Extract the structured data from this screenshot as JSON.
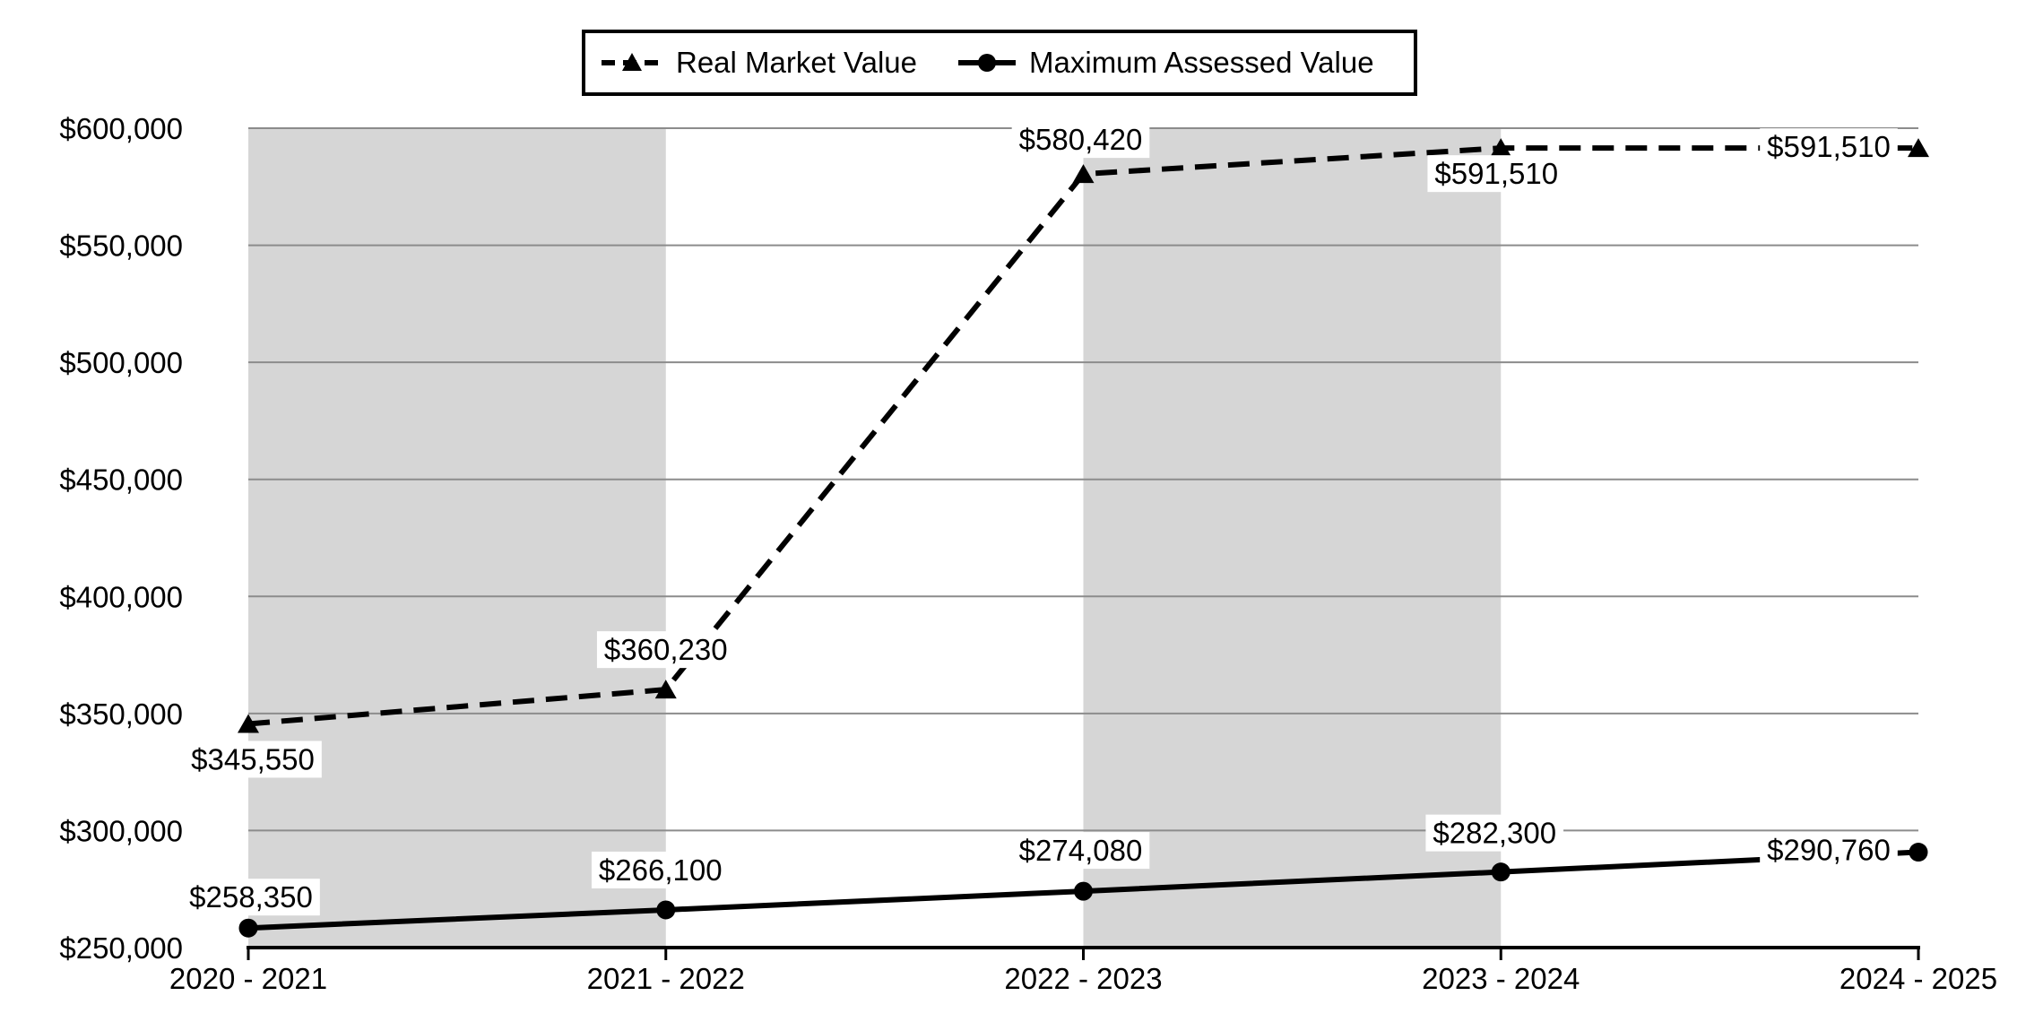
{
  "chart_data": {
    "type": "line",
    "title": "",
    "categories": [
      "2020 - 2021",
      "2021 - 2022",
      "2022 - 2023",
      "2023 - 2024",
      "2024 - 2025"
    ],
    "series": [
      {
        "name": "Real Market Value",
        "line_style": "dashed",
        "marker": "triangle",
        "values": [
          345550,
          360230,
          580420,
          591510,
          591510
        ],
        "labels": [
          "$345,550",
          "$360,230",
          "$580,420",
          "$591,510",
          "$591,510"
        ],
        "label_offsets": [
          [
            5,
            40
          ],
          [
            0,
            -44
          ],
          [
            -3,
            -38
          ],
          [
            -5,
            29
          ],
          [
            -100,
            -1
          ]
        ]
      },
      {
        "name": "Maximum Assessed Value",
        "line_style": "solid",
        "marker": "circle",
        "values": [
          258350,
          266100,
          274080,
          282300,
          290760
        ],
        "labels": [
          "$258,350",
          "$266,100",
          "$274,080",
          "$282,300",
          "$290,760"
        ],
        "label_offsets": [
          [
            3,
            -34
          ],
          [
            -6,
            -44
          ],
          [
            -3,
            -45
          ],
          [
            -7,
            -43
          ],
          [
            -100,
            -2
          ]
        ]
      }
    ],
    "xlabel": "",
    "ylabel": "",
    "ylim": [
      250000,
      600000
    ],
    "ytick_step": 50000,
    "ytick_labels": [
      "$250,000",
      "$300,000",
      "$350,000",
      "$400,000",
      "$450,000",
      "$500,000",
      "$550,000",
      "$600,000"
    ],
    "grid": "horizontal",
    "legend_position": "top-center",
    "shaded_band_category_spans": [
      [
        0,
        1
      ],
      [
        2,
        3
      ]
    ],
    "colors": {
      "line": "#000000",
      "band": "#d6d6d6",
      "gridline": "#8c8c8c",
      "axis": "#000000",
      "label_background": "#ffffff",
      "background": "#ffffff",
      "text": "#000000"
    }
  }
}
